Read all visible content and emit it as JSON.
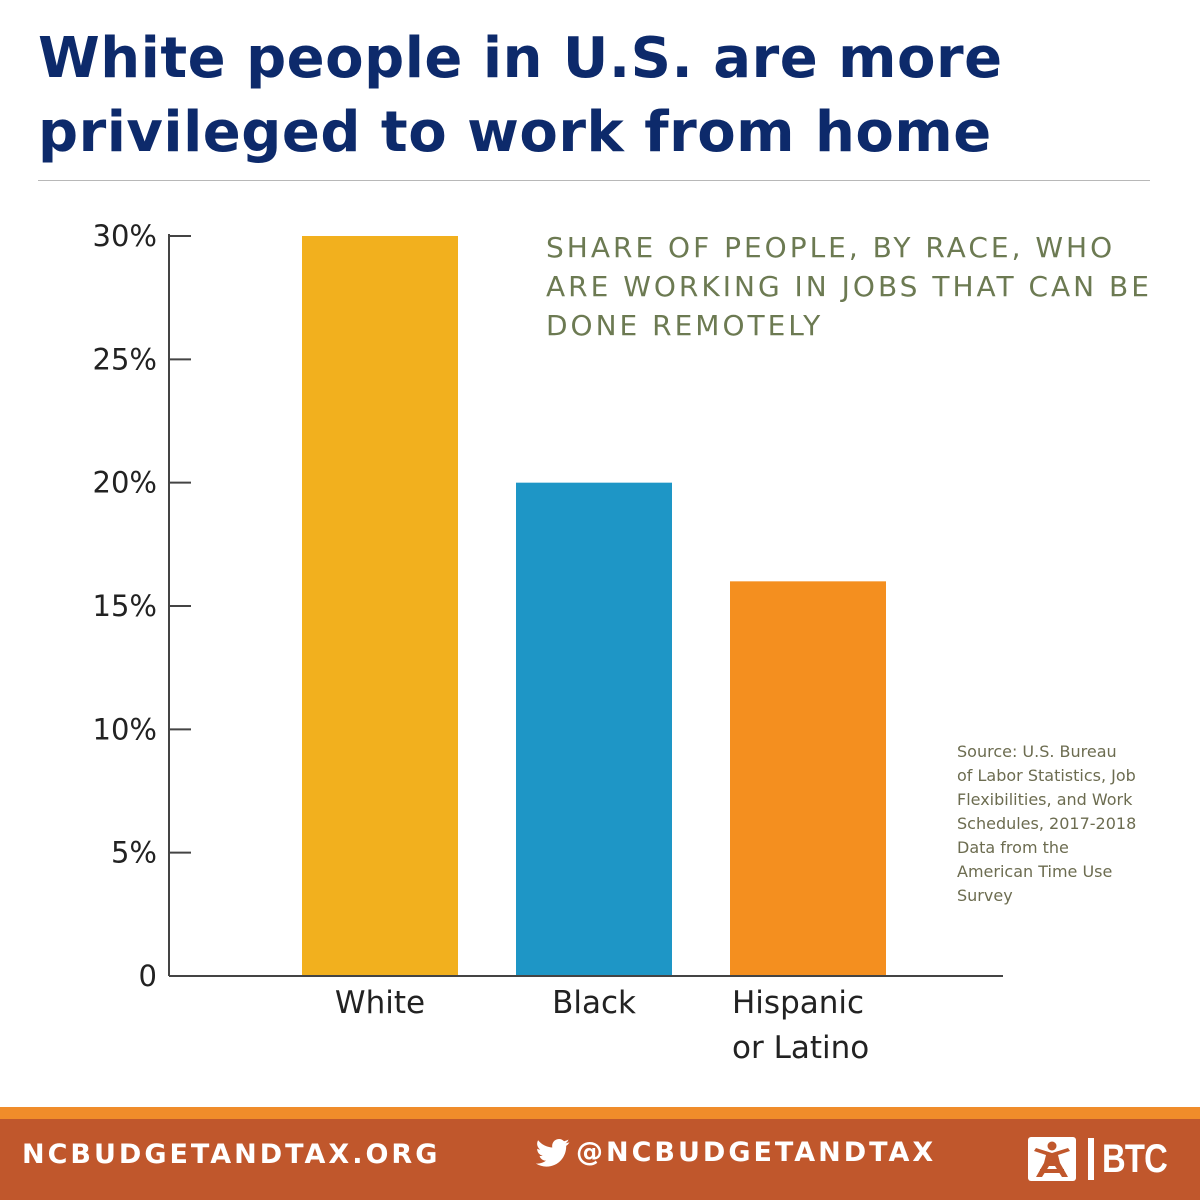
{
  "headline": {
    "line1": "White people in U.S. are more",
    "line2": "privileged to work from home"
  },
  "chart_data": {
    "type": "bar",
    "title": "SHARE OF PEOPLE, BY RACE, WHO ARE WORKING IN JOBS THAT CAN BE DONE REMOTELY",
    "categories": [
      [
        "White"
      ],
      [
        "Black"
      ],
      [
        "Hispanic",
        "or Latino"
      ]
    ],
    "values": [
      30,
      20,
      16
    ],
    "colors": [
      "#f2b01e",
      "#1e96c6",
      "#f48f1f"
    ],
    "ylim": [
      0,
      30
    ],
    "yticks": [
      0,
      5,
      10,
      15,
      20,
      25,
      30
    ],
    "ytick_labels": [
      "0",
      "5%",
      "10%",
      "15%",
      "20%",
      "25%",
      "30%"
    ],
    "xlabel": "",
    "ylabel": "",
    "grid": false,
    "source": "Source: U.S. Bureau of Labor Statistics, Job Flexibilities, and Work Schedules, 2017-2018 Data from the American Time Use Survey"
  },
  "footer": {
    "website": "NCBUDGETANDTAX.ORG",
    "handle": "@NCBUDGETANDTAX",
    "brand": "BTC",
    "icons": [
      "twitter-icon",
      "btc-logo-icon"
    ],
    "colors": {
      "bar": "#c0572c",
      "stripe": "#f08c2a",
      "text": "#ffffff"
    }
  }
}
